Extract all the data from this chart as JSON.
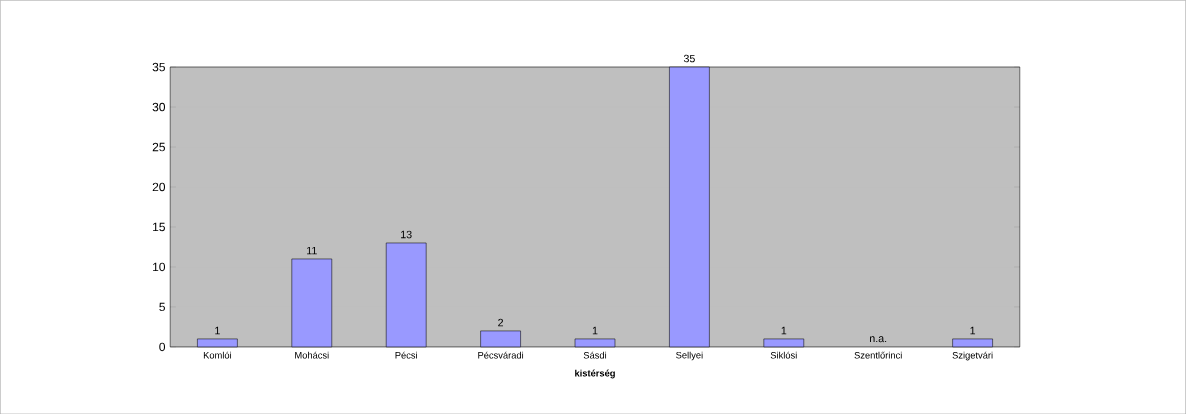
{
  "chart_data": {
    "type": "bar",
    "xlabel": "kistérség",
    "categories": [
      "Komlói",
      "Mohácsi",
      "Pécsi",
      "Pécsváradi",
      "Sásdi",
      "Sellyei",
      "Siklósi",
      "Szentlőrinci",
      "Szigetvári"
    ],
    "values": [
      1,
      11,
      13,
      2,
      1,
      35,
      1,
      null,
      1
    ],
    "value_labels": [
      "1",
      "11",
      "13",
      "2",
      "1",
      "35",
      "1",
      "n.a.",
      "1"
    ],
    "color": "#9999ff",
    "ylim": [
      0,
      35
    ],
    "yticks": [
      0,
      5,
      10,
      15,
      20,
      25,
      30,
      35
    ],
    "grid": "y"
  }
}
